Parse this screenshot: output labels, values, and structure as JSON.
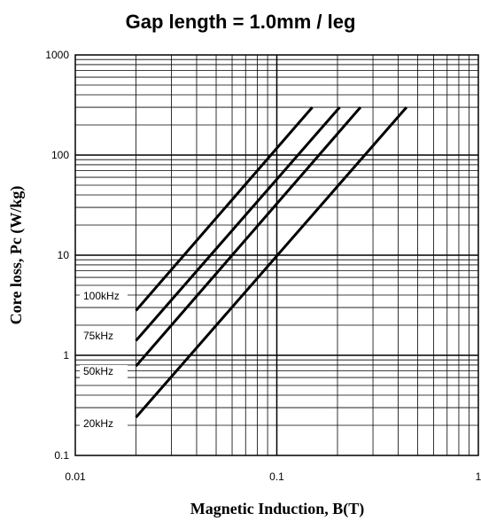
{
  "chart_data": {
    "type": "line",
    "title": "Gap length = 1.0mm / leg",
    "xlabel": "Magnetic Induction, B(T)",
    "ylabel": "Core loss, Pc (W/kg)",
    "x_scale": "log",
    "y_scale": "log",
    "xlim": [
      0.01,
      1
    ],
    "ylim": [
      0.1,
      1000
    ],
    "x_ticks": [
      "0.01",
      "0.1",
      "1"
    ],
    "y_ticks": [
      "0.1",
      "1",
      "10",
      "100",
      "1000"
    ],
    "grid": true,
    "legend": "none",
    "series": [
      {
        "name": "100kHz",
        "x": [
          0.02,
          0.15
        ],
        "y": [
          2.8,
          300
        ]
      },
      {
        "name": "75kHz",
        "x": [
          0.02,
          0.205
        ],
        "y": [
          1.4,
          300
        ]
      },
      {
        "name": "50kHz",
        "x": [
          0.02,
          0.26
        ],
        "y": [
          0.78,
          300
        ]
      },
      {
        "name": "20kHz",
        "x": [
          0.02,
          0.44
        ],
        "y": [
          0.24,
          300
        ]
      }
    ],
    "colors": {
      "line": "#000000",
      "grid": "#000000"
    }
  }
}
